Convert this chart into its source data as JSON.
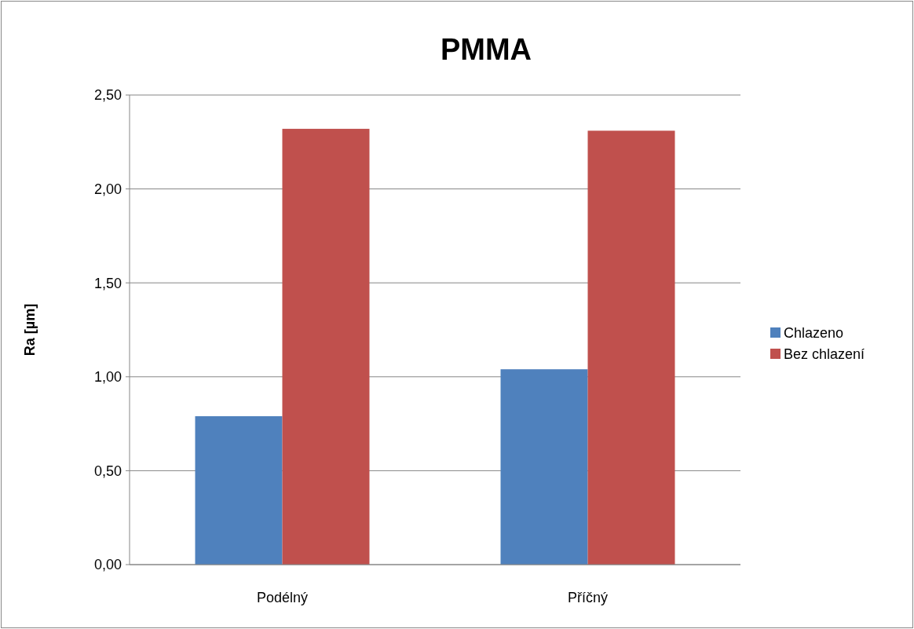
{
  "chart_data": {
    "type": "bar",
    "title": "PMMA",
    "ylabel": "Ra [µm]",
    "categories": [
      "Podélný",
      "Příčný"
    ],
    "series": [
      {
        "name": "Chlazeno",
        "color": "#4f81bd",
        "values": [
          0.79,
          1.04
        ]
      },
      {
        "name": "Bez chlazení",
        "color": "#c0504d",
        "values": [
          2.32,
          2.31
        ]
      }
    ],
    "ylim": [
      0,
      2.5
    ],
    "yticks": [
      {
        "value": 0,
        "label": "0,00"
      },
      {
        "value": 0.5,
        "label": "0,50"
      },
      {
        "value": 1,
        "label": "1,00"
      },
      {
        "value": 1.5,
        "label": "1,50"
      },
      {
        "value": 2,
        "label": "2,00"
      },
      {
        "value": 2.5,
        "label": "2,50"
      }
    ],
    "grid": "y",
    "legend": "right"
  }
}
